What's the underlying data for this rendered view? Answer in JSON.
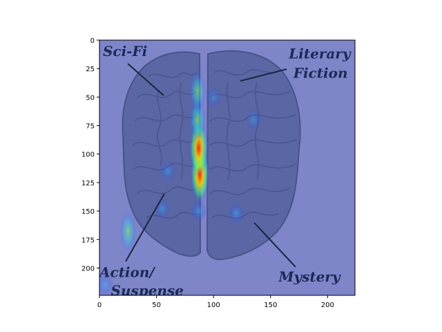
{
  "chart_data": {
    "type": "heatmap",
    "title": "",
    "xlabel": "",
    "ylabel": "",
    "xlim": [
      0,
      224
    ],
    "ylim": [
      224,
      0
    ],
    "xticks": [
      0,
      50,
      100,
      150,
      200
    ],
    "yticks": [
      0,
      25,
      50,
      75,
      100,
      125,
      150,
      175,
      200
    ],
    "grid": false,
    "colormap": "jet",
    "background_color": "#7f86c9",
    "image_annotations": [
      {
        "text": "Sci-Fi",
        "x": 3,
        "y": 14
      },
      {
        "text": "Literary",
        "x": 166,
        "y": 16
      },
      {
        "text": "Fiction",
        "x": 170,
        "y": 33
      },
      {
        "text": "Action/",
        "x": 0,
        "y": 208
      },
      {
        "text": "Suspense",
        "x": 10,
        "y": 224
      },
      {
        "text": "Mystery",
        "x": 157,
        "y": 212
      }
    ],
    "hotspots": [
      {
        "x": 88,
        "y": 118,
        "intensity": 1.0
      },
      {
        "x": 87,
        "y": 95,
        "intensity": 0.85
      },
      {
        "x": 86,
        "y": 70,
        "intensity": 0.6
      },
      {
        "x": 86,
        "y": 45,
        "intensity": 0.45
      },
      {
        "x": 87,
        "y": 150,
        "intensity": 0.35
      },
      {
        "x": 25,
        "y": 168,
        "intensity": 0.4
      },
      {
        "x": 55,
        "y": 148,
        "intensity": 0.25
      },
      {
        "x": 120,
        "y": 152,
        "intensity": 0.3
      },
      {
        "x": 60,
        "y": 115,
        "intensity": 0.2
      },
      {
        "x": 135,
        "y": 70,
        "intensity": 0.15
      },
      {
        "x": 100,
        "y": 50,
        "intensity": 0.2
      },
      {
        "x": 5,
        "y": 215,
        "intensity": 0.25
      }
    ]
  }
}
